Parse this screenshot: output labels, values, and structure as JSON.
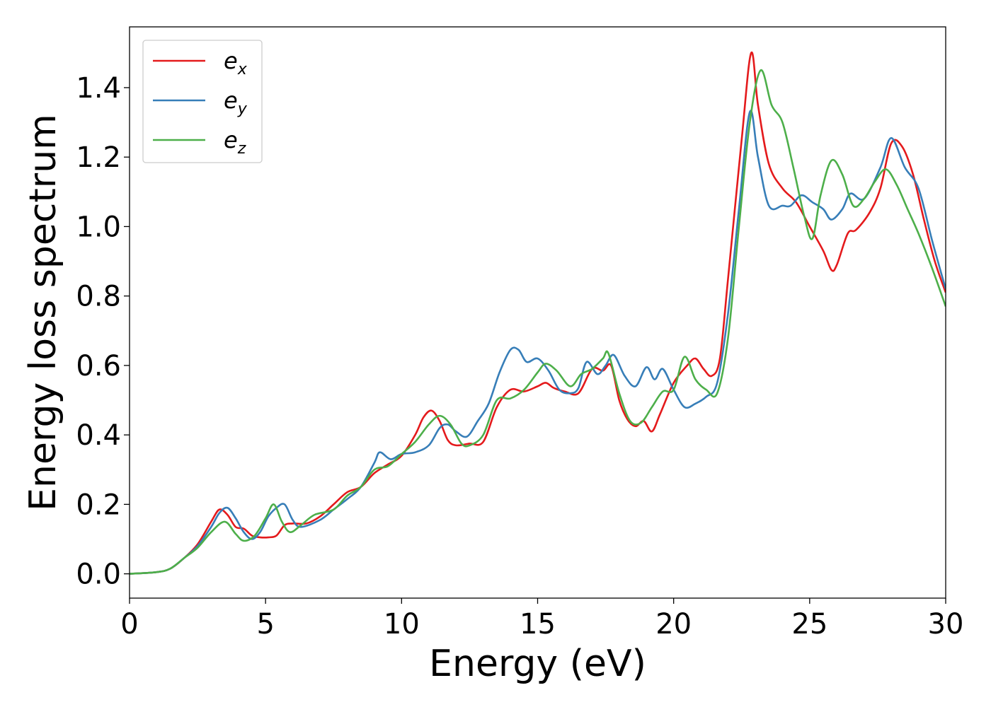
{
  "chart_data": {
    "type": "line",
    "title": "",
    "xlabel": "Energy (eV)",
    "ylabel": "Energy loss spectrum",
    "xlim": [
      0,
      30
    ],
    "ylim": [
      -0.07,
      1.575
    ],
    "xticks": [
      0,
      5,
      10,
      15,
      20,
      25,
      30
    ],
    "xtick_labels": [
      "0",
      "5",
      "10",
      "15",
      "20",
      "25",
      "30"
    ],
    "yticks": [
      0.0,
      0.2,
      0.4,
      0.6,
      0.8,
      1.0,
      1.2,
      1.4
    ],
    "ytick_labels": [
      "0.0",
      "0.2",
      "0.4",
      "0.6",
      "0.8",
      "1.0",
      "1.2",
      "1.4"
    ],
    "grid": false,
    "legend_position": "top-left",
    "series": [
      {
        "name": "e",
        "subscript": "x",
        "color": "#e41a1c",
        "points": [
          [
            0,
            0
          ],
          [
            1,
            0.005
          ],
          [
            1.5,
            0.015
          ],
          [
            2,
            0.045
          ],
          [
            2.5,
            0.085
          ],
          [
            3,
            0.15
          ],
          [
            3.3,
            0.185
          ],
          [
            3.6,
            0.17
          ],
          [
            3.9,
            0.135
          ],
          [
            4.2,
            0.13
          ],
          [
            4.5,
            0.11
          ],
          [
            4.8,
            0.105
          ],
          [
            5.1,
            0.105
          ],
          [
            5.4,
            0.11
          ],
          [
            5.7,
            0.14
          ],
          [
            6,
            0.145
          ],
          [
            6.5,
            0.145
          ],
          [
            7,
            0.165
          ],
          [
            7.5,
            0.2
          ],
          [
            8,
            0.235
          ],
          [
            8.5,
            0.25
          ],
          [
            9,
            0.29
          ],
          [
            9.5,
            0.315
          ],
          [
            10,
            0.34
          ],
          [
            10.5,
            0.4
          ],
          [
            10.8,
            0.45
          ],
          [
            11.1,
            0.47
          ],
          [
            11.4,
            0.44
          ],
          [
            11.7,
            0.385
          ],
          [
            12,
            0.37
          ],
          [
            12.5,
            0.375
          ],
          [
            13,
            0.38
          ],
          [
            13.5,
            0.48
          ],
          [
            14,
            0.53
          ],
          [
            14.5,
            0.525
          ],
          [
            15,
            0.54
          ],
          [
            15.3,
            0.55
          ],
          [
            15.6,
            0.535
          ],
          [
            16,
            0.525
          ],
          [
            16.5,
            0.52
          ],
          [
            17,
            0.59
          ],
          [
            17.4,
            0.585
          ],
          [
            17.7,
            0.6
          ],
          [
            18,
            0.5
          ],
          [
            18.3,
            0.445
          ],
          [
            18.6,
            0.425
          ],
          [
            18.9,
            0.44
          ],
          [
            19.2,
            0.41
          ],
          [
            19.5,
            0.46
          ],
          [
            20,
            0.55
          ],
          [
            20.5,
            0.6
          ],
          [
            20.8,
            0.62
          ],
          [
            21.1,
            0.59
          ],
          [
            21.4,
            0.57
          ],
          [
            21.7,
            0.62
          ],
          [
            22,
            0.85
          ],
          [
            22.5,
            1.25
          ],
          [
            22.85,
            1.5
          ],
          [
            23.1,
            1.35
          ],
          [
            23.5,
            1.18
          ],
          [
            24,
            1.11
          ],
          [
            24.5,
            1.07
          ],
          [
            25,
            1.0
          ],
          [
            25.5,
            0.93
          ],
          [
            25.8,
            0.875
          ],
          [
            26,
            0.89
          ],
          [
            26.4,
            0.98
          ],
          [
            26.7,
            0.99
          ],
          [
            27.2,
            1.04
          ],
          [
            27.6,
            1.11
          ],
          [
            28,
            1.24
          ],
          [
            28.4,
            1.23
          ],
          [
            28.8,
            1.15
          ],
          [
            29.2,
            1.02
          ],
          [
            29.6,
            0.9
          ],
          [
            30,
            0.81
          ]
        ]
      },
      {
        "name": "e",
        "subscript": "y",
        "color": "#377eb8",
        "points": [
          [
            0,
            0
          ],
          [
            1,
            0.005
          ],
          [
            1.5,
            0.015
          ],
          [
            2,
            0.045
          ],
          [
            2.5,
            0.08
          ],
          [
            3,
            0.135
          ],
          [
            3.3,
            0.175
          ],
          [
            3.6,
            0.19
          ],
          [
            3.9,
            0.16
          ],
          [
            4.2,
            0.12
          ],
          [
            4.5,
            0.1
          ],
          [
            4.8,
            0.12
          ],
          [
            5.1,
            0.165
          ],
          [
            5.4,
            0.19
          ],
          [
            5.7,
            0.2
          ],
          [
            6,
            0.155
          ],
          [
            6.3,
            0.135
          ],
          [
            7,
            0.155
          ],
          [
            7.5,
            0.185
          ],
          [
            8,
            0.215
          ],
          [
            8.5,
            0.25
          ],
          [
            9,
            0.32
          ],
          [
            9.2,
            0.35
          ],
          [
            9.6,
            0.33
          ],
          [
            10,
            0.345
          ],
          [
            10.5,
            0.35
          ],
          [
            11,
            0.37
          ],
          [
            11.4,
            0.42
          ],
          [
            11.7,
            0.43
          ],
          [
            12,
            0.41
          ],
          [
            12.4,
            0.395
          ],
          [
            12.8,
            0.44
          ],
          [
            13.2,
            0.49
          ],
          [
            13.6,
            0.58
          ],
          [
            14,
            0.645
          ],
          [
            14.3,
            0.645
          ],
          [
            14.6,
            0.61
          ],
          [
            15,
            0.62
          ],
          [
            15.4,
            0.585
          ],
          [
            15.8,
            0.53
          ],
          [
            16.2,
            0.52
          ],
          [
            16.5,
            0.535
          ],
          [
            16.8,
            0.61
          ],
          [
            17.2,
            0.575
          ],
          [
            17.5,
            0.6
          ],
          [
            17.8,
            0.63
          ],
          [
            18.2,
            0.57
          ],
          [
            18.6,
            0.54
          ],
          [
            19,
            0.595
          ],
          [
            19.3,
            0.56
          ],
          [
            19.6,
            0.59
          ],
          [
            20,
            0.53
          ],
          [
            20.4,
            0.48
          ],
          [
            20.8,
            0.49
          ],
          [
            21.2,
            0.51
          ],
          [
            21.6,
            0.55
          ],
          [
            22,
            0.75
          ],
          [
            22.4,
            1.05
          ],
          [
            22.8,
            1.33
          ],
          [
            23.1,
            1.2
          ],
          [
            23.5,
            1.06
          ],
          [
            24,
            1.06
          ],
          [
            24.3,
            1.06
          ],
          [
            24.7,
            1.09
          ],
          [
            25.1,
            1.07
          ],
          [
            25.5,
            1.05
          ],
          [
            25.8,
            1.02
          ],
          [
            26.2,
            1.05
          ],
          [
            26.5,
            1.095
          ],
          [
            27,
            1.08
          ],
          [
            27.6,
            1.17
          ],
          [
            28,
            1.255
          ],
          [
            28.5,
            1.17
          ],
          [
            29,
            1.11
          ],
          [
            29.5,
            0.96
          ],
          [
            30,
            0.82
          ]
        ]
      },
      {
        "name": "e",
        "subscript": "z",
        "color": "#4daf4a",
        "points": [
          [
            0,
            0
          ],
          [
            1,
            0.005
          ],
          [
            1.5,
            0.015
          ],
          [
            2,
            0.045
          ],
          [
            2.5,
            0.075
          ],
          [
            3,
            0.12
          ],
          [
            3.5,
            0.15
          ],
          [
            3.9,
            0.115
          ],
          [
            4.2,
            0.095
          ],
          [
            4.6,
            0.11
          ],
          [
            5,
            0.16
          ],
          [
            5.3,
            0.2
          ],
          [
            5.6,
            0.15
          ],
          [
            5.9,
            0.12
          ],
          [
            6.3,
            0.14
          ],
          [
            6.8,
            0.17
          ],
          [
            7.5,
            0.185
          ],
          [
            8,
            0.225
          ],
          [
            8.5,
            0.25
          ],
          [
            9,
            0.3
          ],
          [
            9.5,
            0.31
          ],
          [
            10,
            0.345
          ],
          [
            10.5,
            0.38
          ],
          [
            11,
            0.43
          ],
          [
            11.4,
            0.455
          ],
          [
            11.8,
            0.43
          ],
          [
            12.2,
            0.375
          ],
          [
            12.5,
            0.37
          ],
          [
            13,
            0.4
          ],
          [
            13.5,
            0.5
          ],
          [
            14,
            0.505
          ],
          [
            14.5,
            0.53
          ],
          [
            15,
            0.58
          ],
          [
            15.3,
            0.605
          ],
          [
            15.7,
            0.585
          ],
          [
            16.2,
            0.54
          ],
          [
            16.6,
            0.575
          ],
          [
            17,
            0.59
          ],
          [
            17.4,
            0.62
          ],
          [
            17.6,
            0.635
          ],
          [
            18,
            0.52
          ],
          [
            18.4,
            0.44
          ],
          [
            18.8,
            0.435
          ],
          [
            19.2,
            0.48
          ],
          [
            19.6,
            0.525
          ],
          [
            20,
            0.53
          ],
          [
            20.4,
            0.625
          ],
          [
            20.8,
            0.56
          ],
          [
            21.2,
            0.53
          ],
          [
            21.6,
            0.52
          ],
          [
            22,
            0.68
          ],
          [
            22.4,
            1.0
          ],
          [
            22.8,
            1.3
          ],
          [
            23.2,
            1.45
          ],
          [
            23.6,
            1.35
          ],
          [
            24,
            1.3
          ],
          [
            24.4,
            1.17
          ],
          [
            24.8,
            1.03
          ],
          [
            25.1,
            0.965
          ],
          [
            25.4,
            1.09
          ],
          [
            25.8,
            1.19
          ],
          [
            26.2,
            1.15
          ],
          [
            26.6,
            1.06
          ],
          [
            27,
            1.08
          ],
          [
            27.4,
            1.13
          ],
          [
            27.8,
            1.165
          ],
          [
            28.2,
            1.12
          ],
          [
            28.6,
            1.05
          ],
          [
            29,
            0.98
          ],
          [
            29.5,
            0.88
          ],
          [
            30,
            0.77
          ]
        ]
      }
    ]
  }
}
